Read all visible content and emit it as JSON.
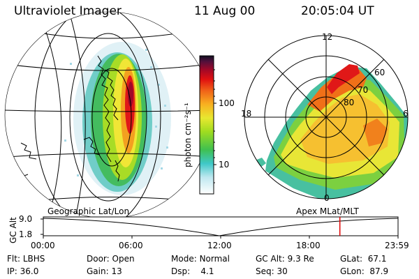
{
  "header": {
    "title": "Ultraviolet Imager",
    "date": "11 Aug 00",
    "time": "20:05:04 UT"
  },
  "colorbar": {
    "unit_label": "photon cm⁻²s⁻¹",
    "ticks": [
      "100",
      "10"
    ]
  },
  "polar_plot": {
    "mlt_labels": [
      "12",
      "18",
      "6",
      "0"
    ],
    "lat_labels": [
      "60",
      "70",
      "80"
    ]
  },
  "timeline": {
    "left_caption": "Geographic Lat/Lon",
    "right_caption": "Apex MLat/MLT",
    "axis_title": "GC Alt",
    "y_ticks": [
      "9.0",
      "1.8"
    ],
    "x_ticks": [
      "00:00",
      "06:00",
      "12:00",
      "18:00",
      "23:59"
    ],
    "current_time_fraction": 0.836
  },
  "info": {
    "row1": [
      {
        "label": "Flt:",
        "value": "LBHS"
      },
      {
        "label": "Door:",
        "value": "Open"
      },
      {
        "label": "Mode:",
        "value": "Normal"
      },
      {
        "label": "GC Alt:",
        "value": "9.3 Re"
      },
      {
        "label": "GLat:",
        "value": "67.1"
      }
    ],
    "row2": [
      {
        "label": "IP:",
        "value": "36.0"
      },
      {
        "label": "Gain:",
        "value": "13"
      },
      {
        "label": "Dsp:",
        "value": "4.1"
      },
      {
        "label": "Seq:",
        "value": "30"
      },
      {
        "label": "GLon:",
        "value": "87.9"
      }
    ]
  },
  "colors": {
    "marker": "#e00000"
  }
}
